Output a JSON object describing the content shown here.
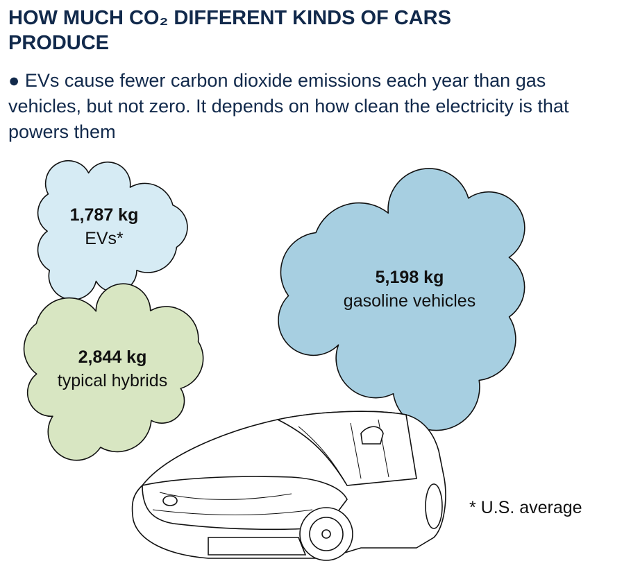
{
  "chart_data": {
    "type": "cloud",
    "title": "HOW MUCH CO₂ DIFFERENT KINDS OF CARS PRODUCE",
    "subtitle": "EVs cause fewer carbon dioxide emissions each year than gas vehicles, but not zero. It depends on how clean the electricity is that powers them",
    "categories": [
      "EVs*",
      "typical hybrids",
      "gasoline vehicles"
    ],
    "values": [
      1787,
      2844,
      5198
    ],
    "value_labels": [
      "1,787 kg",
      "2,844 kg",
      "5,198 kg"
    ],
    "colors": [
      "#d6ebf4",
      "#d8e6c2",
      "#a7cfe1"
    ],
    "footnote": "* U.S. average"
  }
}
